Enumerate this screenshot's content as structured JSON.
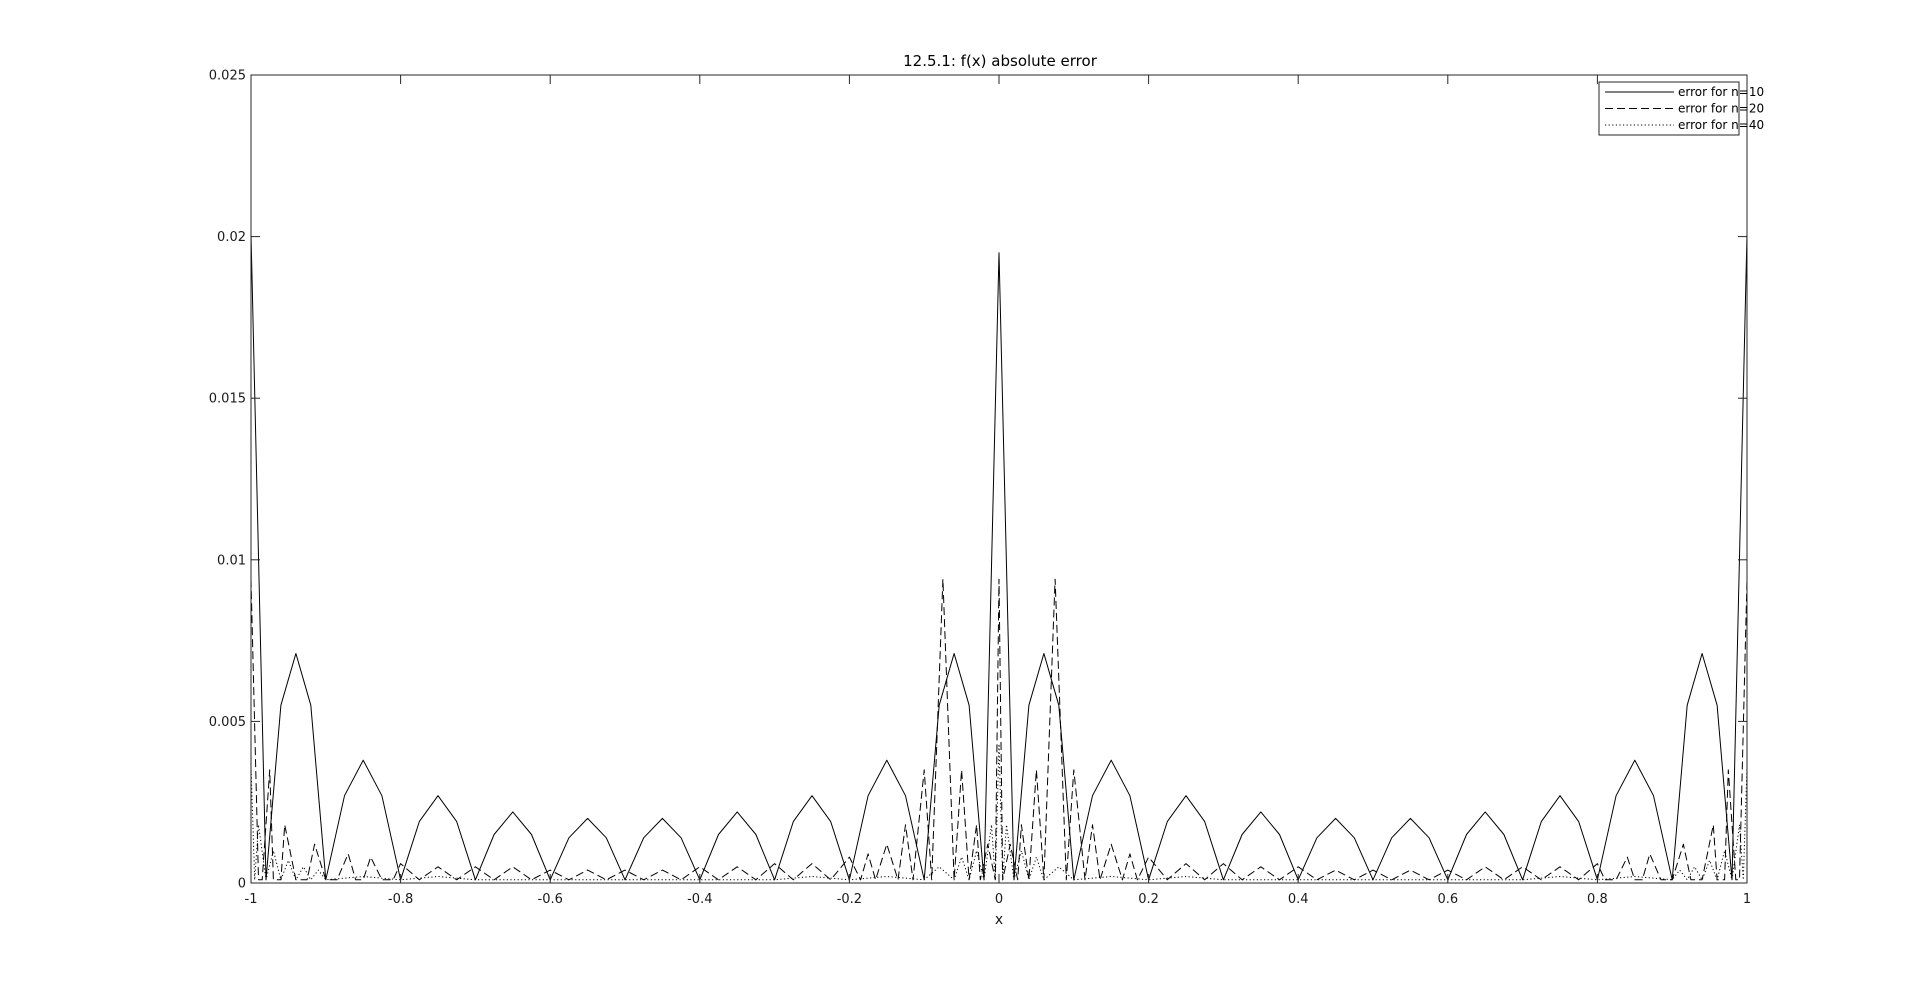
{
  "chart_data": {
    "type": "line",
    "title": "12.5.1: f(x) absolute error",
    "xlabel": "x",
    "ylabel": "",
    "xlim": [
      -1,
      1
    ],
    "ylim": [
      0,
      0.025
    ],
    "grid": false,
    "legend_position": "top-right",
    "x_ticks": [
      -1,
      -0.8,
      -0.6,
      -0.4,
      -0.2,
      0,
      0.2,
      0.4,
      0.6,
      0.8,
      1
    ],
    "x_tick_labels": [
      "-1",
      "-0.8",
      "-0.6",
      "-0.4",
      "-0.2",
      "0",
      "0.2",
      "0.4",
      "0.6",
      "0.8",
      "1"
    ],
    "y_ticks": [
      0,
      0.005,
      0.01,
      0.015,
      0.02,
      0.025
    ],
    "y_tick_labels": [
      "0",
      "0.005",
      "0.01",
      "0.015",
      "0.02",
      "0.025"
    ],
    "series": [
      {
        "name": "error for n=10",
        "line_style": "solid",
        "color": "#000000",
        "x": [
          -1,
          -0.98,
          -0.96,
          -0.94,
          -0.92,
          -0.9,
          -0.875,
          -0.85,
          -0.825,
          -0.8,
          -0.775,
          -0.75,
          -0.725,
          -0.7,
          -0.675,
          -0.65,
          -0.625,
          -0.6,
          -0.575,
          -0.55,
          -0.525,
          -0.5,
          -0.475,
          -0.45,
          -0.425,
          -0.4,
          -0.375,
          -0.35,
          -0.325,
          -0.3,
          -0.275,
          -0.25,
          -0.225,
          -0.2,
          -0.175,
          -0.15,
          -0.125,
          -0.1,
          -0.08,
          -0.06,
          -0.04,
          -0.02,
          -0.01,
          0,
          0.01,
          0.02,
          0.04,
          0.06,
          0.08,
          0.1,
          0.125,
          0.15,
          0.175,
          0.2,
          0.225,
          0.25,
          0.275,
          0.3,
          0.325,
          0.35,
          0.375,
          0.4,
          0.425,
          0.45,
          0.475,
          0.5,
          0.525,
          0.55,
          0.575,
          0.6,
          0.625,
          0.65,
          0.675,
          0.7,
          0.725,
          0.75,
          0.775,
          0.8,
          0.825,
          0.85,
          0.875,
          0.9,
          0.92,
          0.94,
          0.96,
          0.98,
          1
        ],
        "y": [
          0.0201,
          0.0001,
          0.0055,
          0.0071,
          0.0055,
          0.0001,
          0.0027,
          0.0038,
          0.0027,
          0.0001,
          0.0019,
          0.0027,
          0.0019,
          0.0001,
          0.0015,
          0.0022,
          0.0015,
          0.0001,
          0.0014,
          0.002,
          0.0014,
          0.0001,
          0.0014,
          0.002,
          0.0014,
          0.0001,
          0.0015,
          0.0022,
          0.0015,
          0.0001,
          0.0019,
          0.0027,
          0.0019,
          0.0001,
          0.0027,
          0.0038,
          0.0027,
          0.0001,
          0.0055,
          0.0071,
          0.0055,
          0.0001,
          0.0098,
          0.0195,
          0.0098,
          0.0001,
          0.0055,
          0.0071,
          0.0055,
          0.0001,
          0.0027,
          0.0038,
          0.0027,
          0.0001,
          0.0019,
          0.0027,
          0.0019,
          0.0001,
          0.0015,
          0.0022,
          0.0015,
          0.0001,
          0.0014,
          0.002,
          0.0014,
          0.0001,
          0.0014,
          0.002,
          0.0014,
          0.0001,
          0.0015,
          0.0022,
          0.0015,
          0.0001,
          0.0019,
          0.0027,
          0.0019,
          0.0001,
          0.0027,
          0.0038,
          0.0027,
          0.0001,
          0.0055,
          0.0071,
          0.0055,
          0.0001,
          0.0201
        ]
      },
      {
        "name": "error for n=20",
        "line_style": "dashed",
        "color": "#000000",
        "x": [
          -1,
          -0.99,
          -0.985,
          -0.975,
          -0.97,
          -0.96,
          -0.955,
          -0.94,
          -0.925,
          -0.915,
          -0.9,
          -0.885,
          -0.87,
          -0.86,
          -0.85,
          -0.84,
          -0.825,
          -0.81,
          -0.8,
          -0.775,
          -0.75,
          -0.725,
          -0.7,
          -0.675,
          -0.65,
          -0.625,
          -0.6,
          -0.575,
          -0.55,
          -0.525,
          -0.5,
          -0.475,
          -0.45,
          -0.425,
          -0.4,
          -0.375,
          -0.35,
          -0.325,
          -0.3,
          -0.275,
          -0.25,
          -0.225,
          -0.2,
          -0.185,
          -0.175,
          -0.165,
          -0.15,
          -0.135,
          -0.125,
          -0.115,
          -0.1,
          -0.09,
          -0.075,
          -0.06,
          -0.05,
          -0.04,
          -0.03,
          -0.025,
          -0.015,
          -0.005,
          0,
          0.005,
          0.015,
          0.025,
          0.03,
          0.04,
          0.05,
          0.06,
          0.075,
          0.09,
          0.1,
          0.115,
          0.125,
          0.135,
          0.15,
          0.165,
          0.175,
          0.185,
          0.2,
          0.225,
          0.25,
          0.275,
          0.3,
          0.325,
          0.35,
          0.375,
          0.4,
          0.425,
          0.45,
          0.475,
          0.5,
          0.525,
          0.55,
          0.575,
          0.6,
          0.625,
          0.65,
          0.675,
          0.7,
          0.725,
          0.75,
          0.775,
          0.8,
          0.81,
          0.825,
          0.84,
          0.85,
          0.86,
          0.87,
          0.885,
          0.9,
          0.915,
          0.925,
          0.94,
          0.955,
          0.96,
          0.97,
          0.975,
          0.985,
          0.99,
          1
        ],
        "y": [
          0.0094,
          0.0001,
          0.0001,
          0.0035,
          0.0001,
          0.0001,
          0.0018,
          0.0001,
          0.0001,
          0.0012,
          0.0001,
          0.0001,
          0.0009,
          0.0001,
          0.0001,
          0.0008,
          0.0001,
          0.0001,
          0.0006,
          0.0001,
          0.0005,
          0.0001,
          0.0005,
          0.0001,
          0.0005,
          0.0001,
          0.0004,
          0.0001,
          0.0004,
          0.0001,
          0.0004,
          0.0001,
          0.0004,
          0.0001,
          0.0005,
          0.0001,
          0.0005,
          0.0001,
          0.0006,
          0.0001,
          0.0006,
          0.0001,
          0.0008,
          0.0001,
          0.0009,
          0.0001,
          0.0012,
          0.0001,
          0.0018,
          0.0001,
          0.0035,
          0.0001,
          0.0094,
          0.0001,
          0.0035,
          0.0001,
          0.0018,
          0.0001,
          0.0012,
          0.0001,
          0.0094,
          0.0001,
          0.0012,
          0.0001,
          0.0018,
          0.0001,
          0.0035,
          0.0001,
          0.0094,
          0.0001,
          0.0035,
          0.0001,
          0.0018,
          0.0001,
          0.0012,
          0.0001,
          0.0009,
          0.0001,
          0.0008,
          0.0001,
          0.0006,
          0.0001,
          0.0006,
          0.0001,
          0.0005,
          0.0001,
          0.0005,
          0.0001,
          0.0004,
          0.0001,
          0.0004,
          0.0001,
          0.0004,
          0.0001,
          0.0004,
          0.0001,
          0.0005,
          0.0001,
          0.0005,
          0.0001,
          0.0005,
          0.0001,
          0.0006,
          0.0001,
          0.0001,
          0.0008,
          0.0001,
          0.0001,
          0.0009,
          0.0001,
          0.0001,
          0.0012,
          0.0001,
          0.0001,
          0.0018,
          0.0001,
          0.0001,
          0.0035,
          0.0001,
          0.0001,
          0.0094
        ]
      },
      {
        "name": "error for n=40",
        "line_style": "dotted",
        "color": "#000000",
        "x": [
          -1,
          -0.995,
          -0.99,
          -0.98,
          -0.97,
          -0.96,
          -0.95,
          -0.94,
          -0.93,
          -0.92,
          -0.91,
          -0.9,
          -0.85,
          -0.8,
          -0.75,
          -0.7,
          -0.65,
          -0.6,
          -0.55,
          -0.5,
          -0.45,
          -0.4,
          -0.35,
          -0.3,
          -0.25,
          -0.2,
          -0.15,
          -0.1,
          -0.08,
          -0.06,
          -0.05,
          -0.04,
          -0.03,
          -0.02,
          -0.01,
          -0.005,
          0,
          0.005,
          0.01,
          0.02,
          0.03,
          0.04,
          0.05,
          0.06,
          0.08,
          0.1,
          0.15,
          0.2,
          0.25,
          0.3,
          0.35,
          0.4,
          0.45,
          0.5,
          0.55,
          0.6,
          0.65,
          0.7,
          0.75,
          0.8,
          0.85,
          0.9,
          0.91,
          0.92,
          0.93,
          0.94,
          0.95,
          0.96,
          0.97,
          0.98,
          0.99,
          0.995,
          1
        ],
        "y": [
          0.0036,
          0.0001,
          0.0018,
          0.0001,
          0.001,
          0.0001,
          0.0007,
          0.0001,
          0.0005,
          0.0001,
          0.0004,
          0.0001,
          0.0002,
          0.0001,
          0.0002,
          0.0001,
          0.0001,
          0.0001,
          0.0001,
          0.0001,
          0.0001,
          0.0001,
          0.0001,
          0.0001,
          0.0002,
          0.0001,
          0.0002,
          0.0001,
          0.0005,
          0.0001,
          0.0008,
          0.0001,
          0.001,
          0.0001,
          0.0018,
          0.0001,
          0.0043,
          0.0001,
          0.0018,
          0.0001,
          0.001,
          0.0001,
          0.0008,
          0.0001,
          0.0005,
          0.0001,
          0.0002,
          0.0001,
          0.0002,
          0.0001,
          0.0001,
          0.0001,
          0.0001,
          0.0001,
          0.0001,
          0.0001,
          0.0001,
          0.0001,
          0.0002,
          0.0001,
          0.0002,
          0.0001,
          0.0004,
          0.0001,
          0.0005,
          0.0001,
          0.0007,
          0.0001,
          0.001,
          0.0001,
          0.0018,
          0.0001,
          0.0036
        ]
      }
    ]
  }
}
